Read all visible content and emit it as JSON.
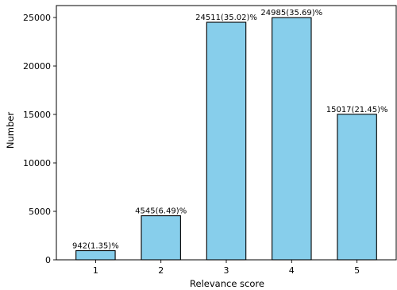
{
  "chart_data": {
    "type": "bar",
    "xlabel": "Relevance score",
    "ylabel": "Number",
    "categories": [
      "1",
      "2",
      "3",
      "4",
      "5"
    ],
    "values": [
      942,
      4545,
      24511,
      24985,
      15017
    ],
    "data_labels": [
      "942(1.35)%",
      "4545(6.49)%",
      "24511(35.02)%",
      "24985(35.69)%",
      "15017(21.45)%"
    ],
    "yticks": [
      0,
      5000,
      10000,
      15000,
      20000,
      25000
    ],
    "ylim": [
      0,
      26234
    ],
    "grid": false,
    "bar_color": "#87ceeb",
    "edge_color": "#000000"
  }
}
